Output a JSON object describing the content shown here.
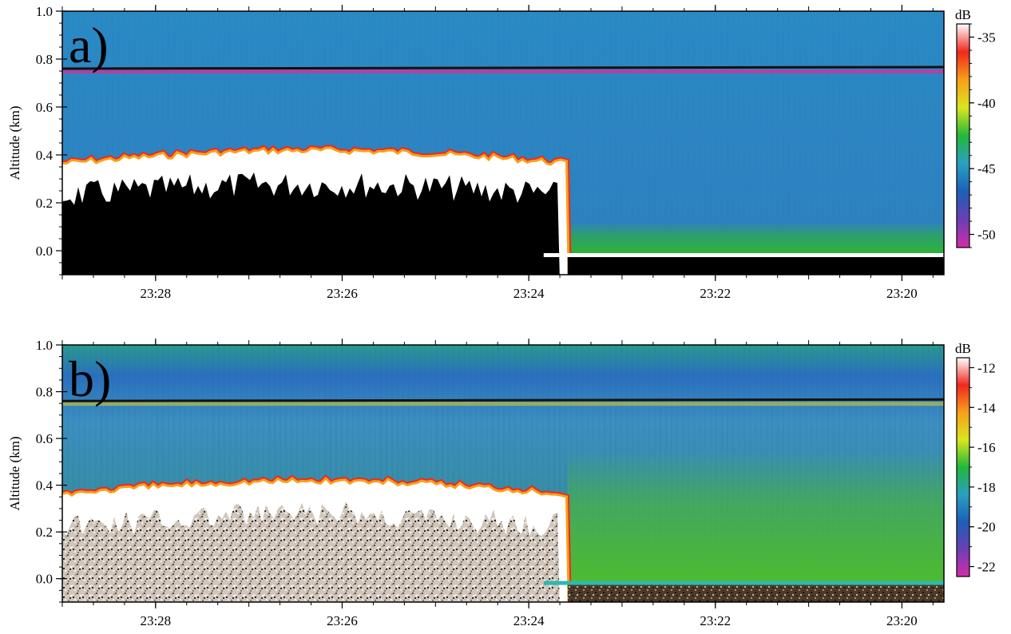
{
  "chart_data": [
    {
      "type": "heatmap",
      "panel_label": "a)",
      "ylabel": "Altitude (km)",
      "yticks": [
        "0.0",
        "0.2",
        "0.4",
        "0.6",
        "0.8",
        "1.0"
      ],
      "ylim": [
        -0.1,
        1.0
      ],
      "xticks": [
        "23:28",
        "23:26",
        "23:24",
        "23:22",
        "23:20"
      ],
      "x_axis_reversed": true,
      "colorbar": {
        "unit": "dB",
        "ticks": [
          "-35",
          "-40",
          "-45",
          "-50"
        ],
        "range": [
          -51,
          -34
        ],
        "colors": [
          "#d42ba8",
          "#6b3fb5",
          "#1c5fb8",
          "#2aa0c0",
          "#22b83a",
          "#d9e61e",
          "#f7a01a",
          "#f0281e",
          "#ffffff"
        ]
      },
      "features": {
        "background_level_color": "#2e86c1",
        "surface_line_altitude_km": 0.76,
        "surface_line_color": "#111111",
        "surface_band_color": "#c03a9e",
        "cloud_top_altitude_km": 0.42,
        "cloud_end_time": "23:23:35",
        "lower_echo_color": "#2db82a"
      }
    },
    {
      "type": "heatmap",
      "panel_label": "b)",
      "ylabel": "Altitude (km)",
      "yticks": [
        "0.0",
        "0.2",
        "0.4",
        "0.6",
        "0.8",
        "1.0"
      ],
      "ylim": [
        -0.1,
        1.0
      ],
      "xticks": [
        "23:28",
        "23:26",
        "23:24",
        "23:22",
        "23:20"
      ],
      "x_axis_reversed": true,
      "colorbar": {
        "unit": "dB",
        "ticks": [
          "-12",
          "-14",
          "-16",
          "-18",
          "-20",
          "-22"
        ],
        "range": [
          -22.5,
          -11.5
        ],
        "colors": [
          "#d42ba8",
          "#6b3fb5",
          "#1c5fb8",
          "#2aa0c0",
          "#22b83a",
          "#d9e61e",
          "#f7a01a",
          "#f0281e",
          "#ffffff"
        ]
      },
      "features": {
        "background_level_color": "#2f7fbe",
        "surface_line_altitude_km": 0.76,
        "surface_line_color": "#111111",
        "surface_band_color": "#e0d020",
        "cloud_top_altitude_km": 0.42,
        "cloud_end_time": "23:23:35",
        "lower_echo_color": "#4fbe2c"
      }
    }
  ]
}
